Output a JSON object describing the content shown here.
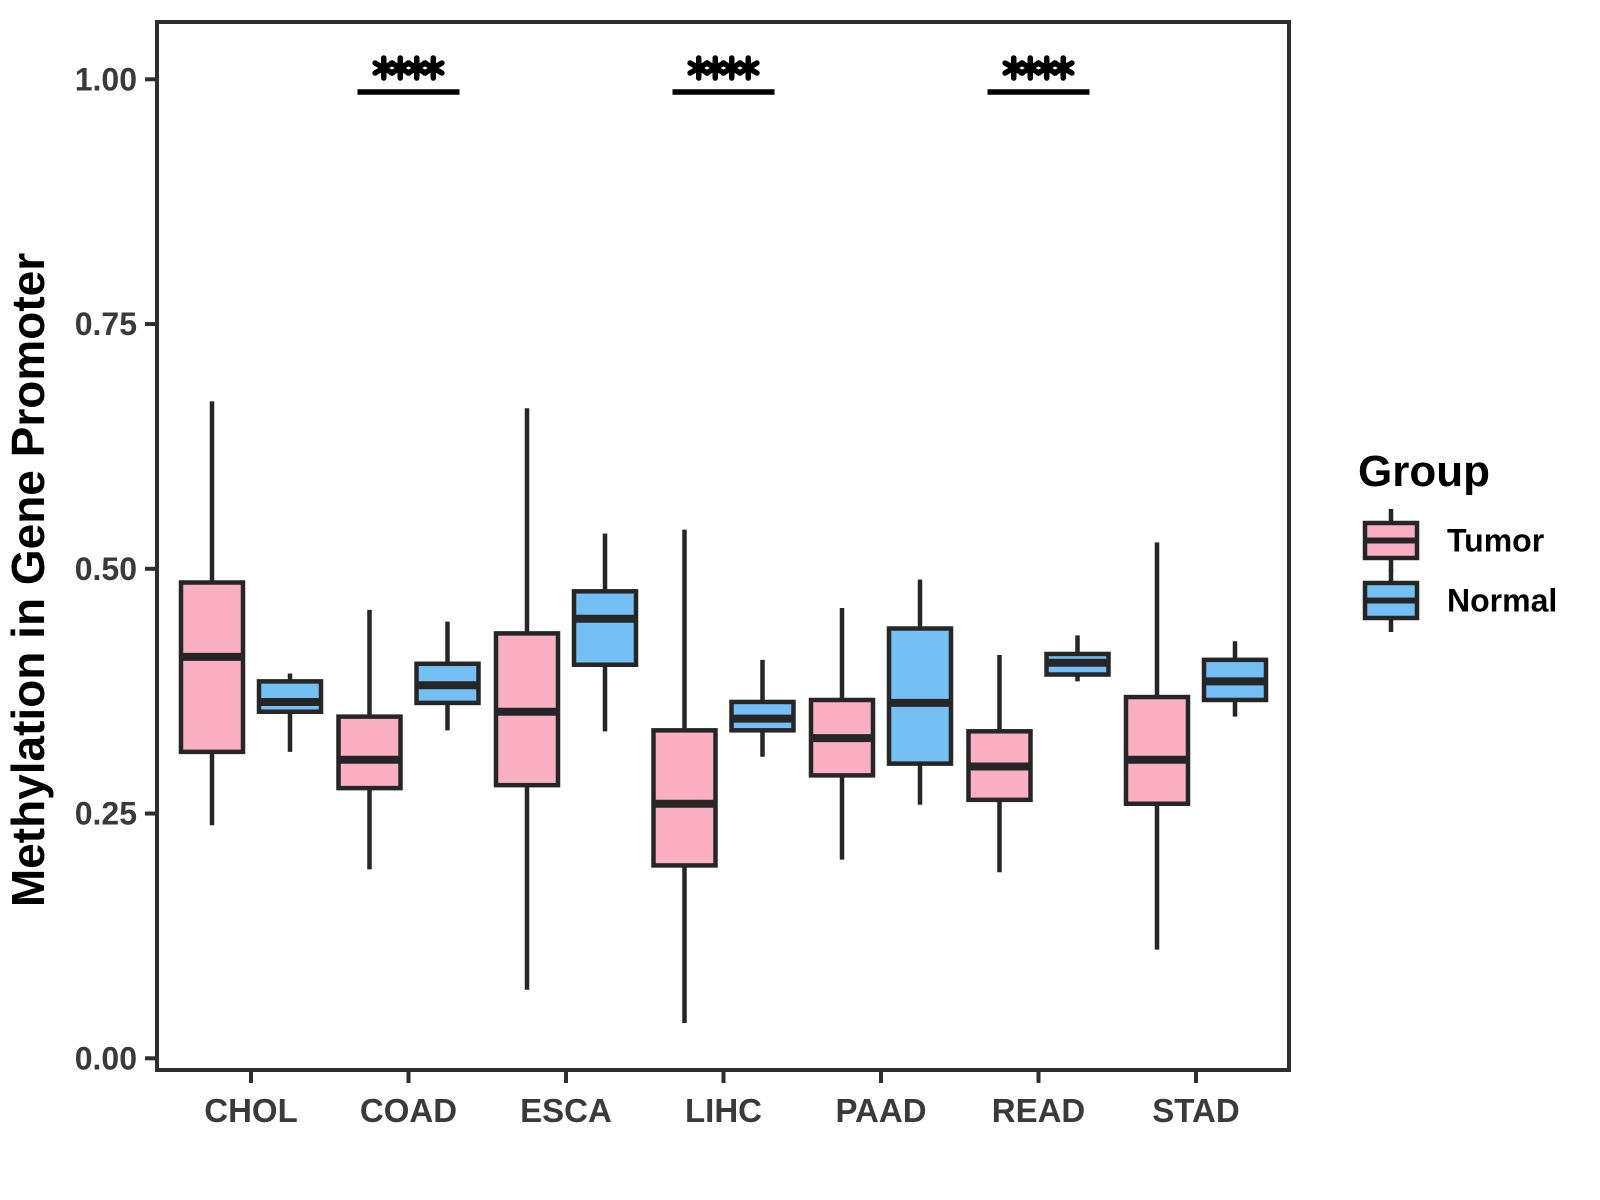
{
  "figure": {
    "background": "#FFFFFF"
  },
  "chart_data": {
    "type": "boxplot",
    "title": "",
    "xlabel": "",
    "ylabel": "Methylation in Gene Promoter",
    "ylim": [
      0.0,
      1.05
    ],
    "grid": false,
    "legend_position": "right",
    "yticks": [
      {
        "value": 0.0,
        "label": "0.00"
      },
      {
        "value": 0.25,
        "label": "0.25"
      },
      {
        "value": 0.5,
        "label": "0.50"
      },
      {
        "value": 0.75,
        "label": "0.75"
      },
      {
        "value": 1.0,
        "label": "1.00"
      }
    ],
    "categories": [
      "CHOL",
      "COAD",
      "ESCA",
      "LIHC",
      "PAAD",
      "READ",
      "STAD"
    ],
    "groups": [
      {
        "name": "Tumor",
        "color": "#FBAFC2"
      },
      {
        "name": "Normal",
        "color": "#74BFF4"
      }
    ],
    "colors": {
      "box_stroke": "#262626",
      "axis_text": "#3A3A3A",
      "axis_line": "#2E2E2E",
      "annotation": "#000000"
    },
    "series": [
      {
        "group": "Tumor",
        "boxes": [
          {
            "category": "CHOL",
            "min": 0.238,
            "q1": 0.313,
            "median": 0.41,
            "q3": 0.486,
            "max": 0.671
          },
          {
            "category": "COAD",
            "min": 0.193,
            "q1": 0.276,
            "median": 0.305,
            "q3": 0.349,
            "max": 0.458
          },
          {
            "category": "ESCA",
            "min": 0.07,
            "q1": 0.279,
            "median": 0.354,
            "q3": 0.434,
            "max": 0.664
          },
          {
            "category": "LIHC",
            "min": 0.036,
            "q1": 0.197,
            "median": 0.26,
            "q3": 0.335,
            "max": 0.54
          },
          {
            "category": "PAAD",
            "min": 0.203,
            "q1": 0.289,
            "median": 0.327,
            "q3": 0.366,
            "max": 0.46
          },
          {
            "category": "READ",
            "min": 0.19,
            "q1": 0.264,
            "median": 0.298,
            "q3": 0.334,
            "max": 0.412
          },
          {
            "category": "STAD",
            "min": 0.111,
            "q1": 0.26,
            "median": 0.305,
            "q3": 0.369,
            "max": 0.527
          }
        ]
      },
      {
        "group": "Normal",
        "boxes": [
          {
            "category": "CHOL",
            "min": 0.313,
            "q1": 0.354,
            "median": 0.364,
            "q3": 0.385,
            "max": 0.393
          },
          {
            "category": "COAD",
            "min": 0.335,
            "q1": 0.363,
            "median": 0.381,
            "q3": 0.403,
            "max": 0.446
          },
          {
            "category": "ESCA",
            "min": 0.334,
            "q1": 0.402,
            "median": 0.449,
            "q3": 0.477,
            "max": 0.536
          },
          {
            "category": "LIHC",
            "min": 0.308,
            "q1": 0.335,
            "median": 0.347,
            "q3": 0.364,
            "max": 0.407
          },
          {
            "category": "PAAD",
            "min": 0.259,
            "q1": 0.301,
            "median": 0.363,
            "q3": 0.439,
            "max": 0.489
          },
          {
            "category": "READ",
            "min": 0.385,
            "q1": 0.392,
            "median": 0.404,
            "q3": 0.413,
            "max": 0.432
          },
          {
            "category": "STAD",
            "min": 0.349,
            "q1": 0.366,
            "median": 0.385,
            "q3": 0.407,
            "max": 0.426
          }
        ]
      }
    ],
    "significance": [
      {
        "category": "COAD",
        "label": "****"
      },
      {
        "category": "LIHC",
        "label": "****"
      },
      {
        "category": "READ",
        "label": "****"
      }
    ],
    "legend": {
      "title": "Group",
      "entries": [
        {
          "label": "Tumor",
          "color": "#FBAFC2"
        },
        {
          "label": "Normal",
          "color": "#74BFF4"
        }
      ]
    }
  }
}
